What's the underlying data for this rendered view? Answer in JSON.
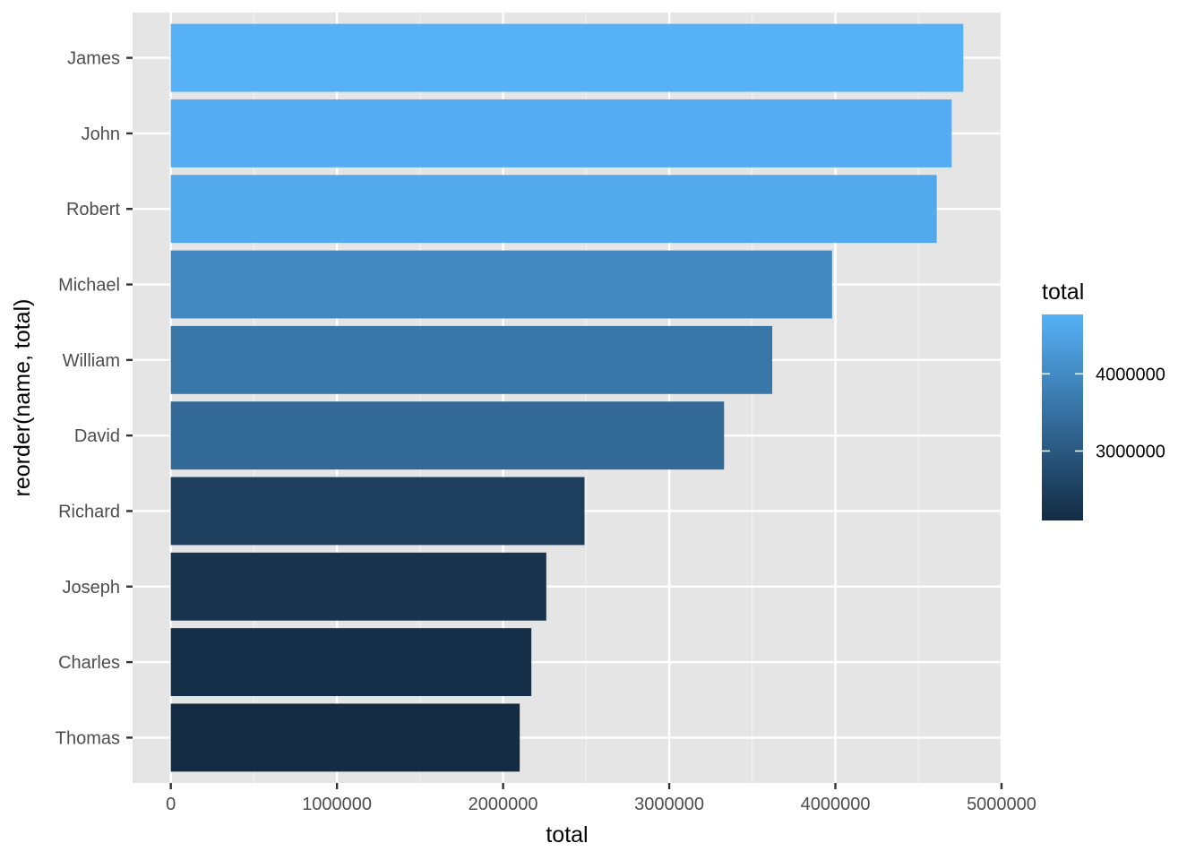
{
  "chart_data": {
    "type": "bar",
    "orientation": "horizontal",
    "categories": [
      "James",
      "John",
      "Robert",
      "Michael",
      "William",
      "David",
      "Richard",
      "Joseph",
      "Charles",
      "Thomas"
    ],
    "values": [
      4770000,
      4700000,
      4610000,
      3980000,
      3620000,
      3330000,
      2490000,
      2260000,
      2170000,
      2100000
    ],
    "xlabel": "total",
    "ylabel": "reorder(name, total)",
    "xlim": [
      -230000,
      5000000
    ],
    "x_ticks": [
      {
        "value": 0,
        "label": "0"
      },
      {
        "value": 1000000,
        "label": "1000000"
      },
      {
        "value": 2000000,
        "label": "2000000"
      },
      {
        "value": 3000000,
        "label": "3000000"
      },
      {
        "value": 4000000,
        "label": "4000000"
      },
      {
        "value": 5000000,
        "label": "5000000"
      }
    ],
    "grid": true,
    "panel_background": "#e5e5e5",
    "legend": {
      "title": "total",
      "placement": "right",
      "type": "colorbar",
      "range": [
        2100000,
        4770000
      ],
      "color_low": "#132b43",
      "color_high": "#56b1f7",
      "ticks": [
        {
          "value": 3000000,
          "label": "3000000"
        },
        {
          "value": 4000000,
          "label": "4000000"
        }
      ]
    }
  }
}
